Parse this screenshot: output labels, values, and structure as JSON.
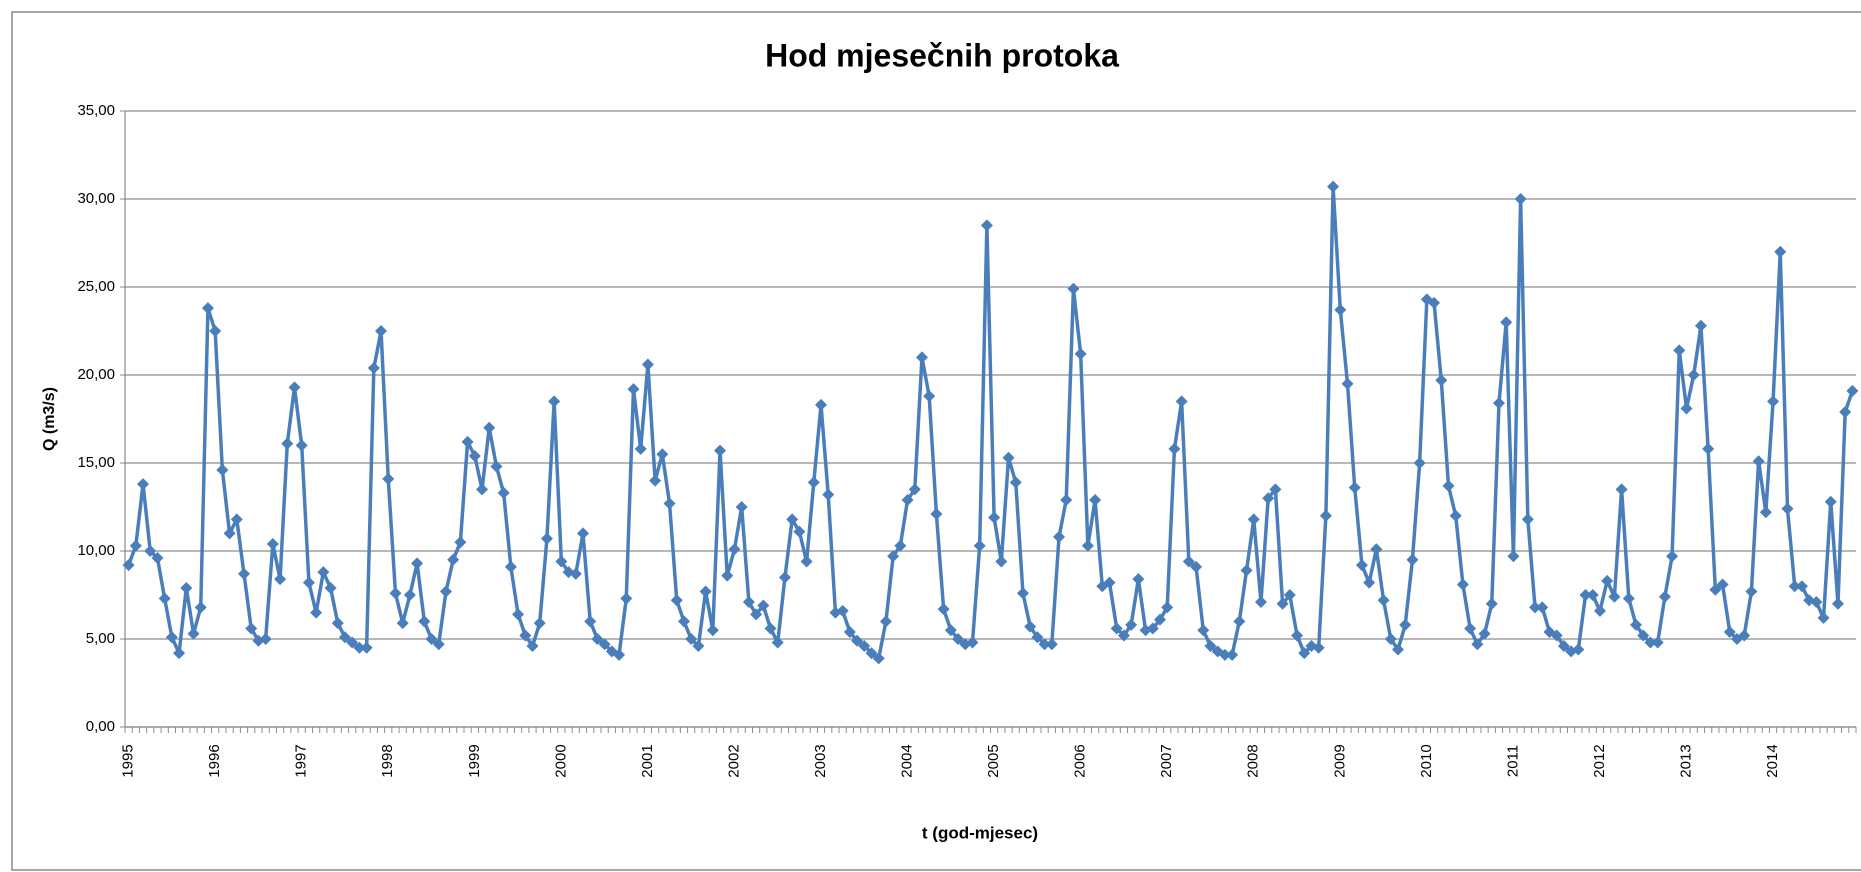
{
  "chart_data": {
    "type": "line",
    "title": "Hod mjesečnih protoka",
    "y_label": "Q (m3/s)",
    "x_label": "t (god-mjesec)",
    "categories": [
      "1995",
      null,
      null,
      null,
      null,
      null,
      null,
      null,
      null,
      null,
      null,
      null,
      "1996",
      null,
      null,
      null,
      null,
      null,
      null,
      null,
      null,
      null,
      null,
      null,
      "1997",
      null,
      null,
      null,
      null,
      null,
      null,
      null,
      null,
      null,
      null,
      null,
      "1998",
      null,
      null,
      null,
      null,
      null,
      null,
      null,
      null,
      null,
      null,
      null,
      "1999",
      null,
      null,
      null,
      null,
      null,
      null,
      null,
      null,
      null,
      null,
      null,
      "2000",
      null,
      null,
      null,
      null,
      null,
      null,
      null,
      null,
      null,
      null,
      null,
      "2001",
      null,
      null,
      null,
      null,
      null,
      null,
      null,
      null,
      null,
      null,
      null,
      "2002",
      null,
      null,
      null,
      null,
      null,
      null,
      null,
      null,
      null,
      null,
      null,
      "2003",
      null,
      null,
      null,
      null,
      null,
      null,
      null,
      null,
      null,
      null,
      null,
      "2004",
      null,
      null,
      null,
      null,
      null,
      null,
      null,
      null,
      null,
      null,
      null,
      "2005",
      null,
      null,
      null,
      null,
      null,
      null,
      null,
      null,
      null,
      null,
      null,
      "2006",
      null,
      null,
      null,
      null,
      null,
      null,
      null,
      null,
      null,
      null,
      null,
      "2007",
      null,
      null,
      null,
      null,
      null,
      null,
      null,
      null,
      null,
      null,
      null,
      "2008",
      null,
      null,
      null,
      null,
      null,
      null,
      null,
      null,
      null,
      null,
      null,
      "2009",
      null,
      null,
      null,
      null,
      null,
      null,
      null,
      null,
      null,
      null,
      null,
      "2010",
      null,
      null,
      null,
      null,
      null,
      null,
      null,
      null,
      null,
      null,
      null,
      "2011",
      null,
      null,
      null,
      null,
      null,
      null,
      null,
      null,
      null,
      null,
      null,
      "2012",
      null,
      null,
      null,
      null,
      null,
      null,
      null,
      null,
      null,
      null,
      null,
      "2013",
      null,
      null,
      null,
      null,
      null,
      null,
      null,
      null,
      null,
      null,
      null,
      "2014",
      null,
      null,
      null,
      null,
      null,
      null,
      null,
      null,
      null,
      null,
      null
    ],
    "values": [
      9.2,
      10.3,
      13.8,
      10.0,
      9.6,
      7.3,
      5.1,
      4.2,
      7.9,
      5.3,
      6.8,
      23.8,
      22.5,
      14.6,
      11.0,
      11.8,
      8.7,
      5.6,
      4.9,
      5.0,
      10.4,
      8.4,
      16.1,
      19.3,
      16.0,
      8.2,
      6.5,
      8.8,
      7.9,
      5.9,
      5.1,
      4.8,
      4.5,
      4.5,
      20.4,
      22.5,
      14.1,
      7.6,
      5.9,
      7.5,
      9.3,
      6.0,
      5.0,
      4.7,
      7.7,
      9.5,
      10.5,
      16.2,
      15.4,
      13.5,
      17.0,
      14.8,
      13.3,
      9.1,
      6.4,
      5.2,
      4.6,
      5.9,
      10.7,
      18.5,
      9.4,
      8.8,
      8.7,
      11.0,
      6.0,
      5.0,
      4.7,
      4.3,
      4.1,
      7.3,
      19.2,
      15.8,
      20.6,
      14.0,
      15.5,
      12.7,
      7.2,
      6.0,
      5.0,
      4.6,
      7.7,
      5.5,
      15.7,
      8.6,
      10.1,
      12.5,
      7.1,
      6.4,
      6.9,
      5.6,
      4.8,
      8.5,
      11.8,
      11.1,
      9.4,
      13.9,
      18.3,
      13.2,
      6.5,
      6.6,
      5.4,
      4.9,
      4.6,
      4.2,
      3.9,
      6.0,
      9.7,
      10.3,
      12.9,
      13.5,
      21.0,
      18.8,
      12.1,
      6.7,
      5.5,
      5.0,
      4.7,
      4.8,
      10.3,
      28.5,
      11.9,
      9.4,
      15.3,
      13.9,
      7.6,
      5.7,
      5.1,
      4.7,
      4.7,
      10.8,
      12.9,
      24.9,
      21.2,
      10.3,
      12.9,
      8.0,
      8.2,
      5.6,
      5.2,
      5.8,
      8.4,
      5.5,
      5.6,
      6.1,
      6.8,
      15.8,
      18.5,
      9.4,
      9.1,
      5.5,
      4.6,
      4.3,
      4.1,
      4.1,
      6.0,
      8.9,
      11.8,
      7.1,
      13.0,
      13.5,
      7.0,
      7.5,
      5.2,
      4.2,
      4.6,
      4.5,
      12.0,
      30.7,
      23.7,
      19.5,
      13.6,
      9.2,
      8.2,
      10.1,
      7.2,
      5.0,
      4.4,
      5.8,
      9.5,
      15.0,
      24.3,
      24.1,
      19.7,
      13.7,
      12.0,
      8.1,
      5.6,
      4.7,
      5.3,
      7.0,
      18.4,
      23.0,
      9.7,
      30.0,
      11.8,
      6.8,
      6.8,
      5.4,
      5.2,
      4.6,
      4.3,
      4.4,
      7.5,
      7.5,
      6.6,
      8.3,
      7.4,
      13.5,
      7.3,
      5.8,
      5.2,
      4.8,
      4.8,
      7.4,
      9.7,
      21.4,
      18.1,
      20.0,
      22.8,
      15.8,
      7.8,
      8.1,
      5.4,
      5.0,
      5.2,
      7.7,
      15.1,
      12.2,
      18.5,
      27.0,
      12.4,
      8.0,
      8.0,
      7.2,
      7.1,
      6.2,
      12.8,
      7.0,
      17.9,
      19.1
    ],
    "color": "#4a7ebb",
    "ylim": [
      0,
      35
    ],
    "yticks": [
      {
        "value": 0,
        "label": "0,00"
      },
      {
        "value": 5,
        "label": "5,00"
      },
      {
        "value": 10,
        "label": "10,00"
      },
      {
        "value": 15,
        "label": "15,00"
      },
      {
        "value": 20,
        "label": "20,00"
      },
      {
        "value": 25,
        "label": "25,00"
      },
      {
        "value": 30,
        "label": "30,00"
      },
      {
        "value": 35,
        "label": "35,00"
      }
    ],
    "grid": true
  }
}
